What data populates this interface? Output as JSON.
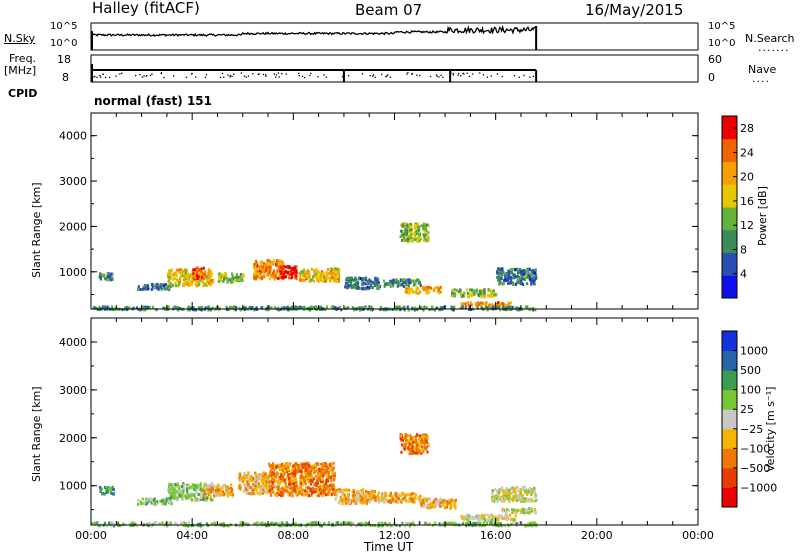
{
  "header": {
    "station": "Halley (fitACF)",
    "beam": "Beam 07",
    "date": "16/May/2015"
  },
  "status_panels": {
    "nsky_label": "N.Sky",
    "nsky_ticks": [
      "10^5",
      "10^0"
    ],
    "nsearch_label": "N.Search",
    "nsearch_ticks": [
      "10^5",
      "10^0"
    ],
    "freq_label": "Freq.",
    "freq_unit": "[MHz]",
    "freq_ticks": [
      "18",
      "8"
    ],
    "nave_label": "Nave",
    "nave_ticks": [
      "60",
      "0"
    ],
    "cpid_label": "CPID",
    "cpid_value": "normal (fast) 151"
  },
  "colors": {
    "power_scale": [
      "#1010ee",
      "#2850b4",
      "#3c8c5a",
      "#64b43c",
      "#e6c800",
      "#f5a000",
      "#f06400",
      "#ee0000"
    ],
    "velocity_scale": [
      "#ee0000",
      "#e83c00",
      "#f07800",
      "#f5b400",
      "#c8c8c8",
      "#78c832",
      "#3c9c50",
      "#2864aa",
      "#1432dc"
    ]
  },
  "chart_data": [
    {
      "type": "heatmap",
      "name": "power",
      "xlabel": "",
      "ylabel": "Slant Range [km]",
      "x_ticks": [
        "00:00",
        "04:00",
        "08:00",
        "12:00",
        "16:00",
        "20:00",
        "00:00"
      ],
      "xlim_hours": [
        0,
        24
      ],
      "ylim_km": [
        180,
        4500
      ],
      "y_ticks": [
        1000,
        2000,
        3000,
        4000
      ],
      "colorbar_label": "Power [dB]",
      "colorbar_ticks": [
        "28",
        "24",
        "20",
        "16",
        "12",
        "8",
        "4"
      ],
      "colorbar_range": [
        0,
        30
      ],
      "blobs": [
        {
          "t0": 0.3,
          "t1": 0.9,
          "r0": 850,
          "r1": 1000,
          "v": 10
        },
        {
          "t0": 1.8,
          "t1": 3.2,
          "r0": 640,
          "r1": 760,
          "v": 8
        },
        {
          "t0": 3.0,
          "t1": 4.8,
          "r0": 720,
          "r1": 1080,
          "v": 18
        },
        {
          "t0": 4.0,
          "t1": 4.5,
          "r0": 880,
          "r1": 1120,
          "v": 24
        },
        {
          "t0": 5.0,
          "t1": 6.0,
          "r0": 800,
          "r1": 1000,
          "v": 14
        },
        {
          "t0": 6.4,
          "t1": 7.6,
          "r0": 870,
          "r1": 1280,
          "v": 22
        },
        {
          "t0": 7.4,
          "t1": 8.1,
          "r0": 880,
          "r1": 1150,
          "v": 28
        },
        {
          "t0": 8.2,
          "t1": 9.8,
          "r0": 820,
          "r1": 1100,
          "v": 18
        },
        {
          "t0": 10.0,
          "t1": 11.4,
          "r0": 650,
          "r1": 900,
          "v": 8
        },
        {
          "t0": 11.5,
          "t1": 13.0,
          "r0": 700,
          "r1": 860,
          "v": 10
        },
        {
          "t0": 12.2,
          "t1": 13.3,
          "r0": 1700,
          "r1": 2100,
          "v": 14
        },
        {
          "t0": 12.4,
          "t1": 13.8,
          "r0": 560,
          "r1": 700,
          "v": 20
        },
        {
          "t0": 14.2,
          "t1": 16.0,
          "r0": 480,
          "r1": 640,
          "v": 14
        },
        {
          "t0": 14.6,
          "t1": 16.6,
          "r0": 280,
          "r1": 360,
          "v": 22
        },
        {
          "t0": 16.0,
          "t1": 17.6,
          "r0": 750,
          "r1": 1100,
          "v": 8
        },
        {
          "t0": 0.0,
          "t1": 17.6,
          "r0": 190,
          "r1": 260,
          "v": 10
        }
      ]
    },
    {
      "type": "heatmap",
      "name": "velocity",
      "xlabel": "Time UT",
      "ylabel": "Slant Range [km]",
      "x_ticks": [
        "00:00",
        "04:00",
        "08:00",
        "12:00",
        "16:00",
        "20:00",
        "00:00"
      ],
      "xlim_hours": [
        0,
        24
      ],
      "ylim_km": [
        180,
        4500
      ],
      "y_ticks": [
        1000,
        2000,
        3000,
        4000
      ],
      "colorbar_label": "Velocity [m s⁻¹]",
      "colorbar_ticks": [
        "1000",
        "500",
        "100",
        "25",
        "−25",
        "−100",
        "−500",
        "−1000"
      ],
      "blobs": [
        {
          "t0": 0.3,
          "t1": 0.9,
          "r0": 850,
          "r1": 1000,
          "v": 6
        },
        {
          "t0": 1.8,
          "t1": 3.2,
          "r0": 640,
          "r1": 760,
          "v": 5
        },
        {
          "t0": 3.0,
          "t1": 4.8,
          "r0": 720,
          "r1": 1080,
          "v": 5
        },
        {
          "t0": 4.4,
          "t1": 5.6,
          "r0": 800,
          "r1": 1050,
          "v": 3
        },
        {
          "t0": 5.8,
          "t1": 7.0,
          "r0": 850,
          "r1": 1300,
          "v": 3
        },
        {
          "t0": 7.0,
          "t1": 9.6,
          "r0": 820,
          "r1": 1500,
          "v": 2
        },
        {
          "t0": 9.6,
          "t1": 11.2,
          "r0": 650,
          "r1": 950,
          "v": 3
        },
        {
          "t0": 11.2,
          "t1": 13.0,
          "r0": 680,
          "r1": 880,
          "v": 3
        },
        {
          "t0": 12.2,
          "t1": 13.3,
          "r0": 1700,
          "r1": 2100,
          "v": 2
        },
        {
          "t0": 13.0,
          "t1": 14.4,
          "r0": 560,
          "r1": 760,
          "v": 3
        },
        {
          "t0": 14.6,
          "t1": 16.8,
          "r0": 300,
          "r1": 420,
          "v": 4
        },
        {
          "t0": 16.2,
          "t1": 17.6,
          "r0": 460,
          "r1": 560,
          "v": 4
        },
        {
          "t0": 15.8,
          "t1": 17.6,
          "r0": 700,
          "r1": 1000,
          "v": 4
        },
        {
          "t0": 0.0,
          "t1": 17.6,
          "r0": 190,
          "r1": 260,
          "v": 5
        }
      ]
    }
  ]
}
